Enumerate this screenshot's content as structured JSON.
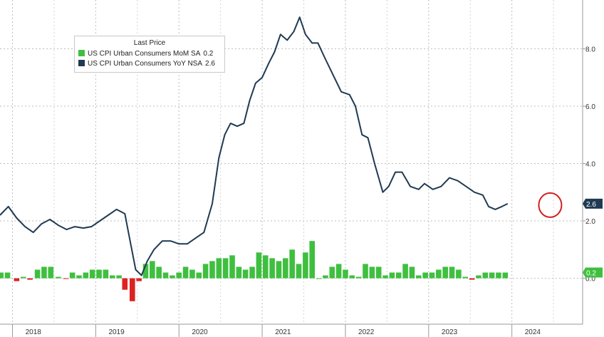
{
  "chart_data": {
    "type": "line+bar",
    "legend": {
      "title": "Last Price",
      "placement": "top-left",
      "entries": [
        {
          "name": "US CPI Urban Consumers MoM SA",
          "value": "0.2",
          "color": "#3fbf3f"
        },
        {
          "name": "US CPI Urban Consumers YoY NSA",
          "value": "2.6",
          "color": "#1f3a52"
        }
      ]
    },
    "x_range": [
      2017.85,
      2024.85
    ],
    "x_tick_labels": [
      {
        "x": 2018,
        "label": "2018"
      },
      {
        "x": 2019,
        "label": "2019"
      },
      {
        "x": 2020,
        "label": "2020"
      },
      {
        "x": 2021,
        "label": "2021"
      },
      {
        "x": 2022,
        "label": "2022"
      },
      {
        "x": 2023,
        "label": "2023"
      },
      {
        "x": 2024,
        "label": "2024"
      }
    ],
    "y_axis_right": {
      "ticks": [
        8.0,
        6.0,
        4.0,
        2.0,
        0.0
      ],
      "tick_labels": [
        "8.0",
        "6.0",
        "4.0",
        "2.0",
        "0.0"
      ],
      "ylim": [
        -1.6,
        9.7
      ]
    },
    "last_value_tags": [
      {
        "label": "2.6",
        "value": 2.6,
        "color": "#1f3a52"
      },
      {
        "label": "0.2",
        "value": 0.2,
        "color": "#3fbf3f"
      }
    ],
    "highlight_circle": {
      "x": 2024.46,
      "y": 2.55,
      "color": "#d02020"
    },
    "grid": true,
    "series": [
      {
        "name": "US CPI Urban Consumers YoY NSA",
        "kind": "line",
        "color": "#1f3a52",
        "points": [
          [
            2017.85,
            2.2
          ],
          [
            2017.95,
            2.5
          ],
          [
            2018.05,
            2.1
          ],
          [
            2018.15,
            1.8
          ],
          [
            2018.25,
            1.6
          ],
          [
            2018.35,
            1.9
          ],
          [
            2018.45,
            2.05
          ],
          [
            2018.55,
            1.85
          ],
          [
            2018.65,
            1.7
          ],
          [
            2018.75,
            1.8
          ],
          [
            2018.85,
            1.75
          ],
          [
            2018.95,
            1.8
          ],
          [
            2019.05,
            2.0
          ],
          [
            2019.15,
            2.2
          ],
          [
            2019.25,
            2.4
          ],
          [
            2019.35,
            2.25
          ],
          [
            2019.4,
            1.5
          ],
          [
            2019.48,
            0.3
          ],
          [
            2019.55,
            0.1
          ],
          [
            2019.62,
            0.6
          ],
          [
            2019.7,
            1.0
          ],
          [
            2019.8,
            1.3
          ],
          [
            2019.9,
            1.3
          ],
          [
            2020.0,
            1.2
          ],
          [
            2020.1,
            1.2
          ],
          [
            2020.2,
            1.4
          ],
          [
            2020.3,
            1.6
          ],
          [
            2020.4,
            2.6
          ],
          [
            2020.48,
            4.2
          ],
          [
            2020.55,
            5.0
          ],
          [
            2020.62,
            5.4
          ],
          [
            2020.7,
            5.3
          ],
          [
            2020.78,
            5.4
          ],
          [
            2020.85,
            6.2
          ],
          [
            2020.92,
            6.8
          ],
          [
            2021.0,
            7.0
          ],
          [
            2021.08,
            7.5
          ],
          [
            2021.15,
            7.9
          ],
          [
            2021.22,
            8.5
          ],
          [
            2021.3,
            8.3
          ],
          [
            2021.38,
            8.6
          ],
          [
            2021.45,
            9.1
          ],
          [
            2021.52,
            8.5
          ],
          [
            2021.6,
            8.2
          ],
          [
            2021.67,
            8.2
          ],
          [
            2021.75,
            7.7
          ],
          [
            2021.85,
            7.1
          ],
          [
            2021.95,
            6.5
          ],
          [
            2022.05,
            6.4
          ],
          [
            2022.12,
            6.0
          ],
          [
            2022.2,
            5.0
          ],
          [
            2022.27,
            4.9
          ],
          [
            2022.35,
            4.0
          ],
          [
            2022.45,
            3.0
          ],
          [
            2022.52,
            3.2
          ],
          [
            2022.6,
            3.7
          ],
          [
            2022.68,
            3.7
          ],
          [
            2022.78,
            3.2
          ],
          [
            2022.88,
            3.1
          ],
          [
            2022.95,
            3.3
          ],
          [
            2023.05,
            3.1
          ],
          [
            2023.15,
            3.2
          ],
          [
            2023.25,
            3.5
          ],
          [
            2023.35,
            3.4
          ],
          [
            2023.45,
            3.2
          ],
          [
            2023.55,
            3.0
          ],
          [
            2023.65,
            2.9
          ],
          [
            2023.72,
            2.5
          ],
          [
            2023.8,
            2.4
          ],
          [
            2023.88,
            2.5
          ],
          [
            2023.95,
            2.6
          ]
        ]
      },
      {
        "name": "US CPI Urban Consumers MoM SA",
        "kind": "bar",
        "color": "#3fbf3f",
        "negative_color": "#dd2222",
        "bar_width": 0.065,
        "bars": [
          [
            2017.86,
            0.2
          ],
          [
            2017.94,
            0.2
          ],
          [
            2018.05,
            -0.1
          ],
          [
            2018.13,
            0.05
          ],
          [
            2018.21,
            -0.05
          ],
          [
            2018.3,
            0.3
          ],
          [
            2018.38,
            0.4
          ],
          [
            2018.46,
            0.4
          ],
          [
            2018.55,
            0.05
          ],
          [
            2018.64,
            -0.02
          ],
          [
            2018.72,
            0.2
          ],
          [
            2018.8,
            0.1
          ],
          [
            2018.88,
            0.2
          ],
          [
            2018.96,
            0.3
          ],
          [
            2019.04,
            0.3
          ],
          [
            2019.12,
            0.3
          ],
          [
            2019.2,
            0.1
          ],
          [
            2019.28,
            0.1
          ],
          [
            2019.35,
            -0.4
          ],
          [
            2019.44,
            -0.8
          ],
          [
            2019.52,
            -0.1
          ],
          [
            2019.6,
            0.5
          ],
          [
            2019.68,
            0.6
          ],
          [
            2019.76,
            0.4
          ],
          [
            2019.84,
            0.2
          ],
          [
            2019.92,
            0.1
          ],
          [
            2020.0,
            0.2
          ],
          [
            2020.08,
            0.4
          ],
          [
            2020.16,
            0.3
          ],
          [
            2020.24,
            0.2
          ],
          [
            2020.32,
            0.5
          ],
          [
            2020.4,
            0.6
          ],
          [
            2020.48,
            0.7
          ],
          [
            2020.56,
            0.7
          ],
          [
            2020.64,
            0.8
          ],
          [
            2020.72,
            0.4
          ],
          [
            2020.8,
            0.3
          ],
          [
            2020.88,
            0.4
          ],
          [
            2020.96,
            0.9
          ],
          [
            2021.04,
            0.8
          ],
          [
            2021.12,
            0.7
          ],
          [
            2021.2,
            0.6
          ],
          [
            2021.28,
            0.7
          ],
          [
            2021.36,
            1.0
          ],
          [
            2021.44,
            0.5
          ],
          [
            2021.52,
            0.9
          ],
          [
            2021.6,
            1.3
          ],
          [
            2021.68,
            0.0
          ],
          [
            2021.76,
            0.1
          ],
          [
            2021.84,
            0.4
          ],
          [
            2021.92,
            0.5
          ],
          [
            2022.0,
            0.3
          ],
          [
            2022.08,
            0.1
          ],
          [
            2022.16,
            0.05
          ],
          [
            2022.24,
            0.5
          ],
          [
            2022.32,
            0.4
          ],
          [
            2022.4,
            0.4
          ],
          [
            2022.48,
            0.1
          ],
          [
            2022.56,
            0.2
          ],
          [
            2022.64,
            0.2
          ],
          [
            2022.72,
            0.5
          ],
          [
            2022.8,
            0.4
          ],
          [
            2022.88,
            0.1
          ],
          [
            2022.96,
            0.2
          ],
          [
            2023.04,
            0.2
          ],
          [
            2023.12,
            0.3
          ],
          [
            2023.2,
            0.4
          ],
          [
            2023.28,
            0.4
          ],
          [
            2023.36,
            0.3
          ],
          [
            2023.44,
            0.05
          ],
          [
            2023.52,
            -0.05
          ],
          [
            2023.6,
            0.1
          ],
          [
            2023.68,
            0.2
          ],
          [
            2023.76,
            0.2
          ],
          [
            2023.84,
            0.2
          ],
          [
            2023.92,
            0.2
          ]
        ]
      }
    ]
  }
}
